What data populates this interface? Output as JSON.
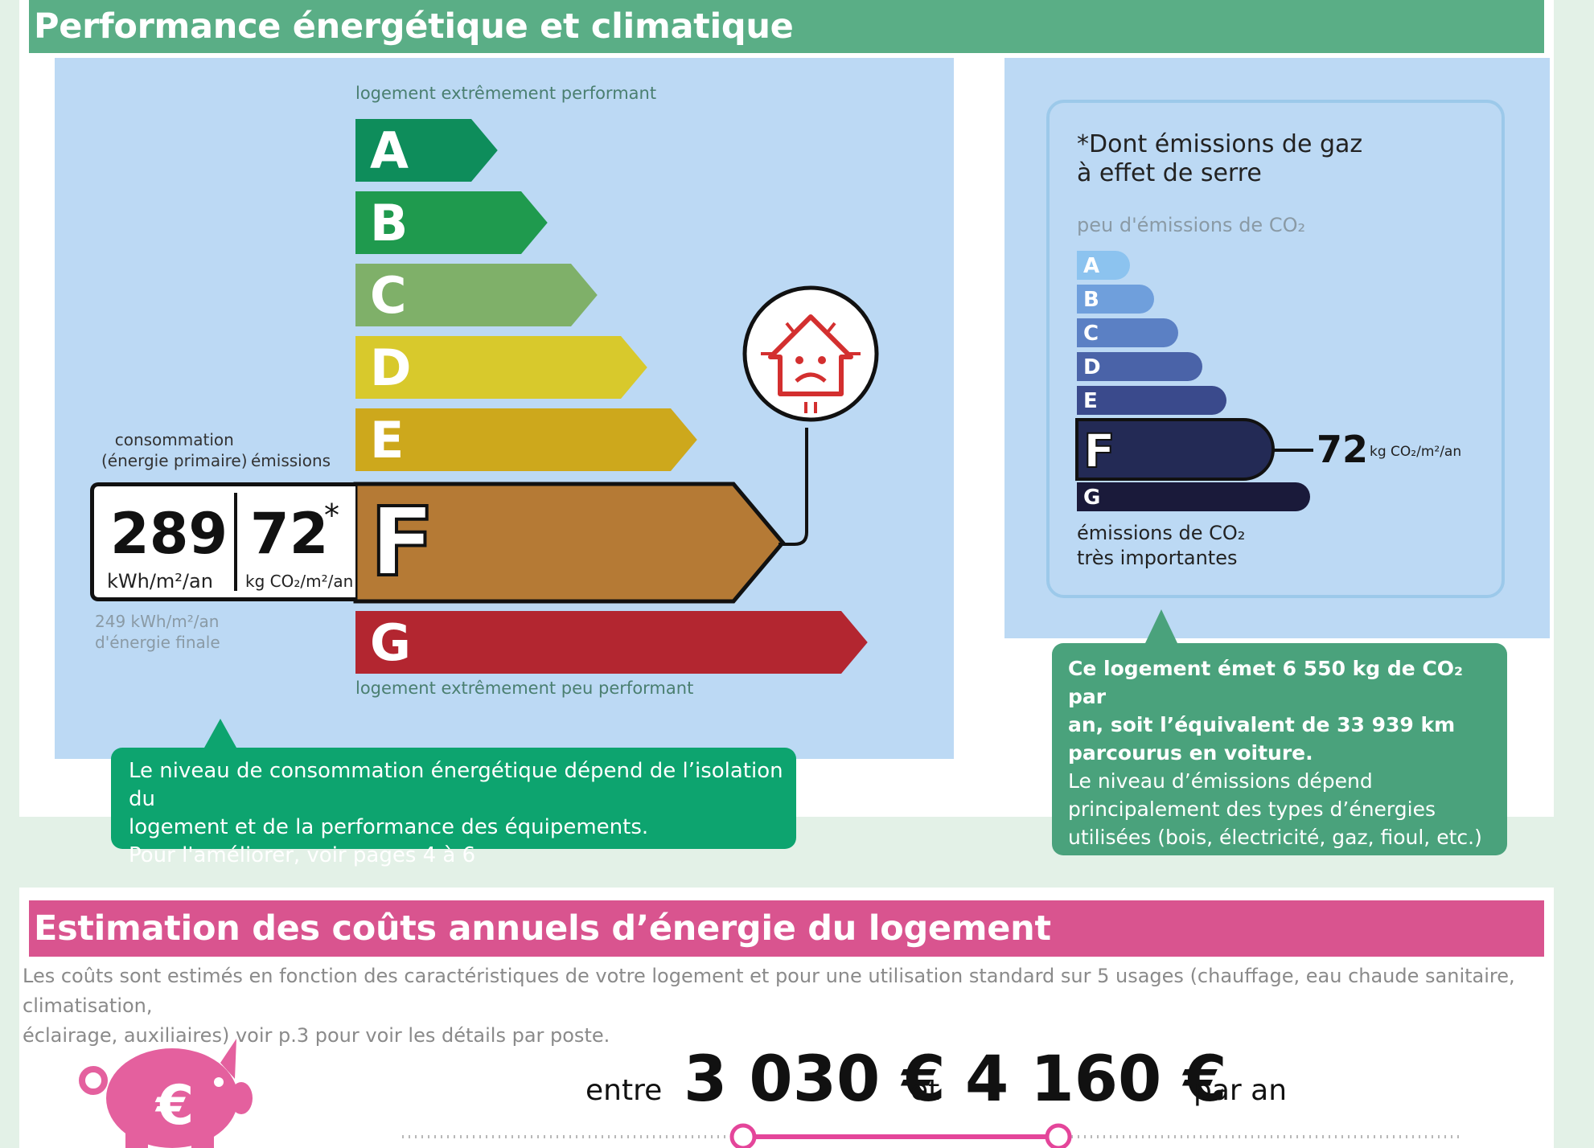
{
  "energy_section": {
    "title": "Performance énergétique et climatique",
    "label": {
      "top_caption": "logement extrêmement performant",
      "bottom_caption": "logement extrêmement peu performant",
      "classes": [
        "A",
        "B",
        "C",
        "D",
        "E",
        "F",
        "G"
      ],
      "colors": [
        "#0e8d5b",
        "#1f9a4e",
        "#7fb069",
        "#d8c92c",
        "#cda81c",
        "#b57a35",
        "#b32630"
      ],
      "current_class": "F",
      "consumption_label_1": "consommation",
      "consumption_label_2": "(énergie primaire)",
      "emissions_label": "émissions",
      "consumption_value": "289",
      "consumption_unit": "kWh/m²/an",
      "emissions_value": "72",
      "emissions_star": "*",
      "emissions_unit": "kg CO₂/m²/an",
      "final_energy_1": "249 kWh/m²/an",
      "final_energy_2": "d'énergie finale"
    },
    "consumption_callout": {
      "line1": "Le niveau de consommation énergétique dépend de l’isolation du",
      "line2": "logement et de la performance des équipements.",
      "line3": "Pour l'améliorer, voir pages 4 à 6"
    },
    "ges": {
      "title_line1": "*Dont émissions de gaz",
      "title_line2": "à effet de serre",
      "top_caption": "peu d'émissions de CO₂",
      "classes": [
        "A",
        "B",
        "C",
        "D",
        "E",
        "F",
        "G"
      ],
      "colors": [
        "#8cc3ef",
        "#6f9fdc",
        "#5b80c4",
        "#4a63a8",
        "#3a4a8c",
        "#232a55",
        "#1a1a3a"
      ],
      "current_class": "F",
      "value": "72",
      "unit": "kg CO₂/m²/an",
      "bottom_caption_1": "émissions de CO₂",
      "bottom_caption_2": "très importantes"
    },
    "emissions_callout": {
      "bold1": "Ce logement émet 6 550 kg de CO₂ par",
      "bold2": "an, soit l’équivalent de 33 939 km",
      "bold3": "parcourus en voiture.",
      "line1": "Le niveau d’émissions dépend",
      "line2": "principalement des types d’énergies",
      "line3": "utilisées (bois, électricité, gaz, fioul, etc.)"
    }
  },
  "cost_section": {
    "title": "Estimation des coûts annuels d’énergie du logement",
    "description_1": "Les coûts sont estimés en fonction des caractéristiques de votre logement et pour une utilisation standard sur 5 usages (chauffage, eau chaude sanitaire, climatisation,",
    "description_2": "éclairage, auxiliaires) voir p.3 pour voir les détails par poste.",
    "word_between": "entre",
    "low": "3 030 €",
    "word_and": "et",
    "high": "4 160 €",
    "word_per_year": "par an"
  },
  "colors": {
    "green_header": "#5aae86",
    "pink_header": "#d9548f",
    "callout_green": "#0da46f",
    "callout_green2": "#4aa27c"
  }
}
